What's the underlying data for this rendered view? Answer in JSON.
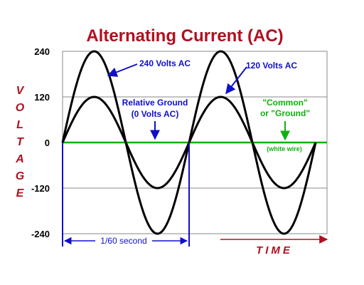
{
  "chart_data": {
    "type": "line",
    "title": "Alternating Current (AC)",
    "ylabel": "VOLTAGE",
    "xlabel": "TIME",
    "y_ticks": [
      "240",
      "120",
      "0",
      "-120",
      "-240"
    ],
    "ylim": [
      -240,
      240
    ],
    "x_range_cycles": [
      0,
      2
    ],
    "grid": true,
    "series": [
      {
        "name": "240 Volts AC",
        "amplitude": 240,
        "color": "#000000"
      },
      {
        "name": "120 Volts AC",
        "amplitude": 120,
        "color": "#000000"
      },
      {
        "name": "Relative Ground (0 Volts AC)",
        "amplitude": 0,
        "color": "#10b010"
      }
    ],
    "annotations": {
      "label_240": "240 Volts AC",
      "label_120": "120 Volts AC",
      "relative_ground_1": "Relative Ground",
      "relative_ground_2": "(0 Volts AC)",
      "common_1": "\"Common\"",
      "common_2": "or \"Ground\"",
      "white_wire": "(white wire)",
      "period": "1/60 second"
    },
    "colors": {
      "title": "#b01020",
      "annotation": "#1010c8",
      "ground": "#10b010",
      "curve": "#000000"
    }
  }
}
